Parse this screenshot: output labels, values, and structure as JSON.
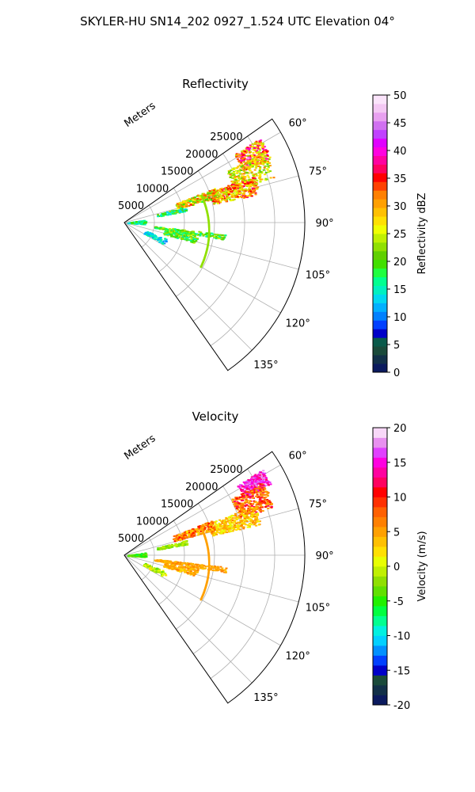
{
  "figure": {
    "suptitle": "SKYLER-HU  SN14_202  0927_1.524 UTC Elevation 04°"
  },
  "chart_data": [
    {
      "type": "heatmap",
      "title": "Reflectivity",
      "range_label": "Meters",
      "range_ticks": [
        "5000",
        "10000",
        "15000",
        "20000",
        "25000"
      ],
      "azimuth_ticks": [
        "60°",
        "75°",
        "90°",
        "105°",
        "120°",
        "135°"
      ],
      "range_lim": [
        0,
        30000
      ],
      "azimuth_lim": [
        55,
        145
      ],
      "grid": true,
      "colorbar": {
        "label": "Reflectivity dBZ",
        "range": [
          0,
          50
        ],
        "ticks": [
          "0",
          "5",
          "10",
          "15",
          "20",
          "25",
          "30",
          "35",
          "40",
          "45",
          "50"
        ],
        "colors": [
          "#0b1a5e",
          "#123048",
          "#1a4a3a",
          "#0a5a4a",
          "#0000c8",
          "#0040ff",
          "#0080ff",
          "#00b0ff",
          "#00d8f0",
          "#00f0c0",
          "#00ff90",
          "#20ff40",
          "#40e000",
          "#60d000",
          "#90e000",
          "#c0f000",
          "#f0ff00",
          "#ffe000",
          "#ffc000",
          "#ffa000",
          "#ff8000",
          "#ff4000",
          "#ff0000",
          "#ff0060",
          "#ff00a0",
          "#ff00e0",
          "#e000ff",
          "#c040ff",
          "#d070f0",
          "#e8a0f0",
          "#f4c8f4",
          "#fbe4fb"
        ]
      }
    },
    {
      "type": "heatmap",
      "title": "Velocity",
      "range_label": "Meters",
      "range_ticks": [
        "5000",
        "10000",
        "15000",
        "20000",
        "25000"
      ],
      "azimuth_ticks": [
        "60°",
        "75°",
        "90°",
        "105°",
        "120°",
        "135°"
      ],
      "range_lim": [
        0,
        30000
      ],
      "azimuth_lim": [
        55,
        145
      ],
      "grid": true,
      "colorbar": {
        "label": "Velocity (m/s)",
        "range": [
          -20,
          20
        ],
        "ticks": [
          "-20",
          "-15",
          "-10",
          "-5",
          "0",
          "5",
          "10",
          "15",
          "20"
        ],
        "colors": [
          "#0b1a5e",
          "#123048",
          "#1a4a3a",
          "#0000c8",
          "#0040ff",
          "#0090ff",
          "#00d0ff",
          "#00f0e0",
          "#00ff90",
          "#00ff40",
          "#20f000",
          "#60e000",
          "#90e000",
          "#c0f000",
          "#e8ff00",
          "#ffe000",
          "#ffc000",
          "#ffa000",
          "#ff8000",
          "#ff6000",
          "#ff3000",
          "#ff0000",
          "#ff0060",
          "#ff00a0",
          "#ff00e0",
          "#e040ff",
          "#e890f0",
          "#f8d8f8"
        ]
      }
    }
  ]
}
